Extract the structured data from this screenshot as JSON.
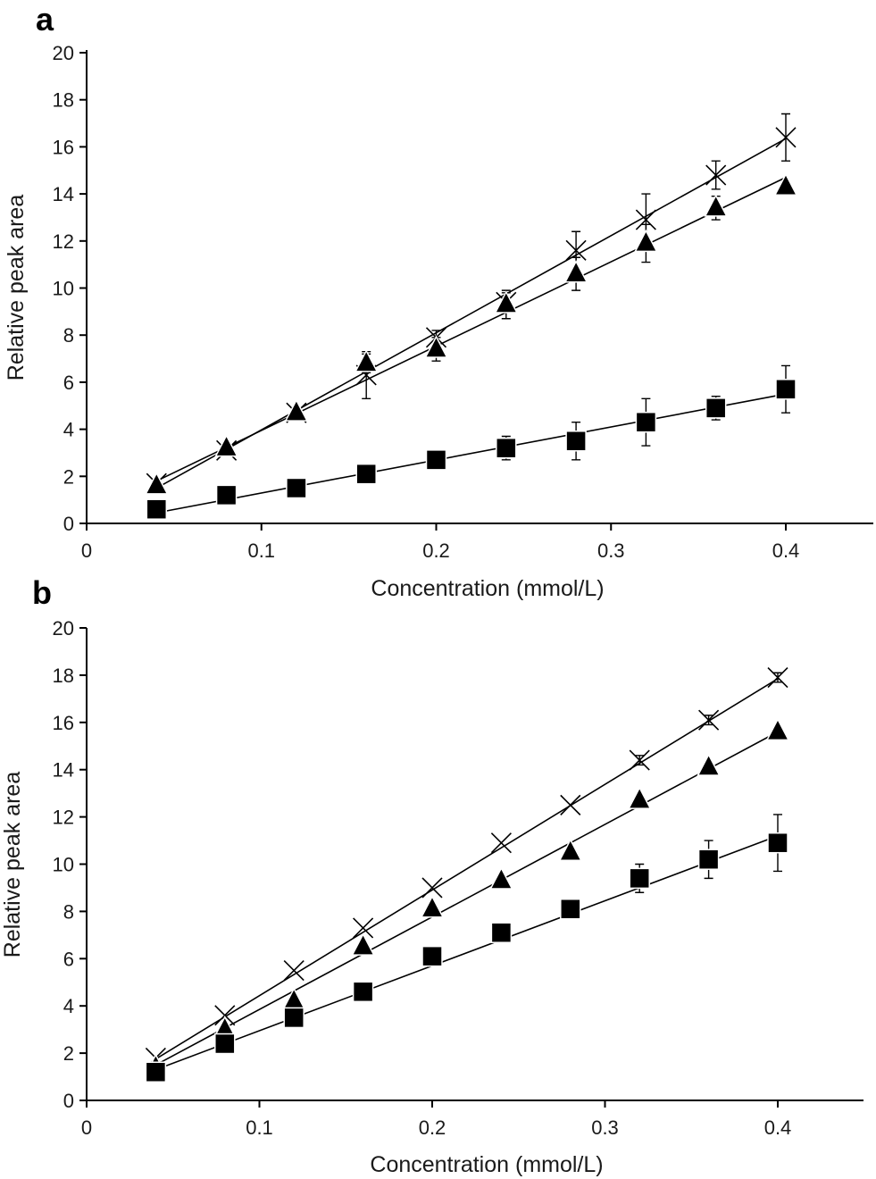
{
  "chart_data": [
    {
      "type": "scatter",
      "panel_label": "a",
      "xlabel": "Concentration (mmol/L)",
      "ylabel": "Relative peak area",
      "xlim": [
        0,
        0.45
      ],
      "ylim": [
        0,
        20
      ],
      "x_ticks": [
        0,
        0.1,
        0.2,
        0.3,
        0.4
      ],
      "x_tick_labels": [
        "0",
        "0.1",
        "0.2",
        "0.3",
        "0.4"
      ],
      "y_ticks": [
        0,
        2,
        4,
        6,
        8,
        10,
        12,
        14,
        16,
        18,
        20
      ],
      "y_tick_labels": [
        "0",
        "2",
        "4",
        "6",
        "8",
        "10",
        "12",
        "14",
        "16",
        "18",
        "20"
      ],
      "grid": false,
      "x": [
        0.04,
        0.08,
        0.12,
        0.16,
        0.2,
        0.24,
        0.28,
        0.32,
        0.36,
        0.4
      ],
      "series": [
        {
          "name": "cross",
          "marker": "x",
          "values": [
            1.7,
            3.1,
            4.7,
            6.3,
            7.9,
            9.4,
            11.6,
            12.9,
            14.8,
            16.4
          ],
          "errors": [
            0.1,
            0.1,
            0.1,
            1.0,
            0.3,
            0.4,
            0.8,
            1.1,
            0.6,
            1.0
          ],
          "fit": [
            1.5,
            16.35
          ]
        },
        {
          "name": "triangle",
          "marker": "triangle",
          "values": [
            1.6,
            3.2,
            4.7,
            6.8,
            7.4,
            9.3,
            10.6,
            11.9,
            13.4,
            14.3
          ],
          "errors": [
            0.1,
            0.1,
            0.1,
            0.4,
            0.5,
            0.6,
            0.7,
            0.8,
            0.5,
            0.1
          ],
          "fit": [
            1.8,
            14.7
          ]
        },
        {
          "name": "square",
          "marker": "square",
          "values": [
            0.6,
            1.2,
            1.5,
            2.1,
            2.7,
            3.2,
            3.5,
            4.3,
            4.9,
            5.7
          ],
          "errors": [
            0.1,
            0.1,
            0.1,
            0.1,
            0.1,
            0.5,
            0.8,
            1.0,
            0.5,
            1.0
          ],
          "fit": [
            0.45,
            5.5
          ]
        }
      ]
    },
    {
      "type": "scatter",
      "panel_label": "b",
      "xlabel": "Concentration (mmol/L)",
      "ylabel": "Relative peak area",
      "xlim": [
        0,
        0.45
      ],
      "ylim": [
        0,
        20
      ],
      "x_ticks": [
        0,
        0.1,
        0.2,
        0.3,
        0.4
      ],
      "x_tick_labels": [
        "0",
        "0.1",
        "0.2",
        "0.3",
        "0.4"
      ],
      "y_ticks": [
        0,
        2,
        4,
        6,
        8,
        10,
        12,
        14,
        16,
        18,
        20
      ],
      "y_tick_labels": [
        "0",
        "2",
        "4",
        "6",
        "8",
        "10",
        "12",
        "14",
        "16",
        "18",
        "20"
      ],
      "grid": false,
      "x": [
        0.04,
        0.08,
        0.12,
        0.16,
        0.2,
        0.24,
        0.28,
        0.32,
        0.36,
        0.4
      ],
      "series": [
        {
          "name": "cross",
          "marker": "x",
          "values": [
            1.8,
            3.6,
            5.5,
            7.3,
            9.0,
            10.9,
            12.5,
            14.4,
            16.1,
            17.9
          ],
          "errors": [
            0.1,
            0.1,
            0.1,
            0.1,
            0.1,
            0.1,
            0.1,
            0.2,
            0.2,
            0.2
          ],
          "fit": [
            1.75,
            17.85
          ]
        },
        {
          "name": "triangle",
          "marker": "triangle",
          "values": [
            1.4,
            3.0,
            4.2,
            6.5,
            8.1,
            9.3,
            10.5,
            12.7,
            14.1,
            15.6
          ],
          "errors": [
            0.1,
            0.1,
            0.1,
            0.1,
            0.1,
            0.1,
            0.1,
            0.1,
            0.1,
            0.1
          ],
          "fit": [
            1.5,
            15.6
          ]
        },
        {
          "name": "square",
          "marker": "square",
          "values": [
            1.2,
            2.4,
            3.5,
            4.6,
            6.1,
            7.1,
            8.1,
            9.4,
            10.2,
            10.9
          ],
          "errors": [
            0.1,
            0.1,
            0.1,
            0.1,
            0.1,
            0.1,
            0.1,
            0.6,
            0.8,
            1.2
          ],
          "fit": [
            1.3,
            11.2
          ]
        }
      ]
    }
  ]
}
